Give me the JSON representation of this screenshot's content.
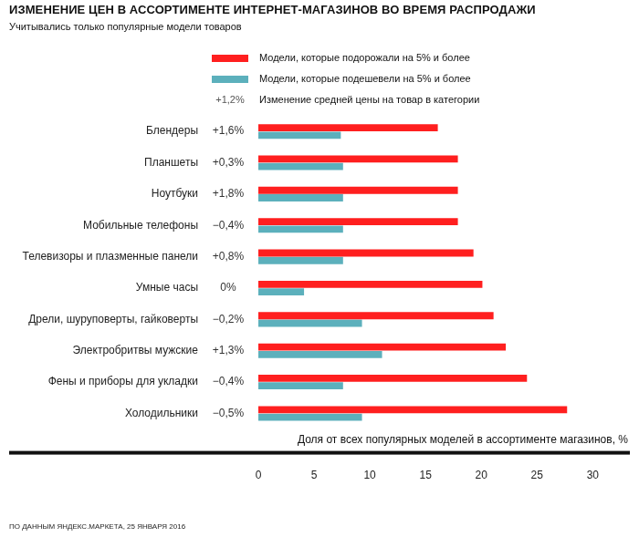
{
  "chart_data": {
    "type": "bar",
    "orientation": "horizontal",
    "title": "ИЗМЕНЕНИЕ ЦЕН В АССОРТИМЕНТЕ ИНТЕРНЕТ-МАГАЗИНОВ ВО ВРЕМЯ РАСПРОДАЖИ",
    "subtitle": "Учитывались только популярные модели товаров",
    "x_label": "Доля от всех популярных моделей в ассортименте магазинов, %",
    "source": "ПО ДАННЫМ ЯНДЕКС.МАРКЕТА, 25 ЯНВАРЯ 2016",
    "categories": [
      "Блендеры",
      "Планшеты",
      "Ноутбуки",
      "Мобильные телефоны",
      "Телевизоры и плазменные панели",
      "Умные часы",
      "Дрели, шуруповерты, гайковерты",
      "Электробритвы мужские",
      "Фены и приборы для укладки",
      "Холодильники"
    ],
    "series": [
      {
        "name": "Модели, которые подорожали на 5% и более",
        "color": "#ff1f1f",
        "values": [
          16.1,
          17.9,
          17.9,
          17.9,
          19.3,
          20.1,
          21.1,
          22.2,
          24.1,
          27.7
        ]
      },
      {
        "name": "Модели, которые подешевели на 5% и более",
        "color": "#5cb0bc",
        "values": [
          7.4,
          7.6,
          7.6,
          7.6,
          7.6,
          4.1,
          9.3,
          11.1,
          7.6,
          9.3
        ]
      }
    ],
    "price_change": {
      "name": "Изменение средней цены на товар в категории",
      "example": "+1,2%",
      "labels": [
        "+1,6%",
        "+0,3%",
        "+1,8%",
        "−0,4%",
        "+0,8%",
        "0%",
        "−0,2%",
        "+1,3%",
        "−0,4%",
        "−0,5%"
      ]
    },
    "xlim": [
      0,
      30
    ],
    "xticks": [
      0,
      5,
      10,
      15,
      20,
      25,
      30
    ],
    "grid": false
  }
}
